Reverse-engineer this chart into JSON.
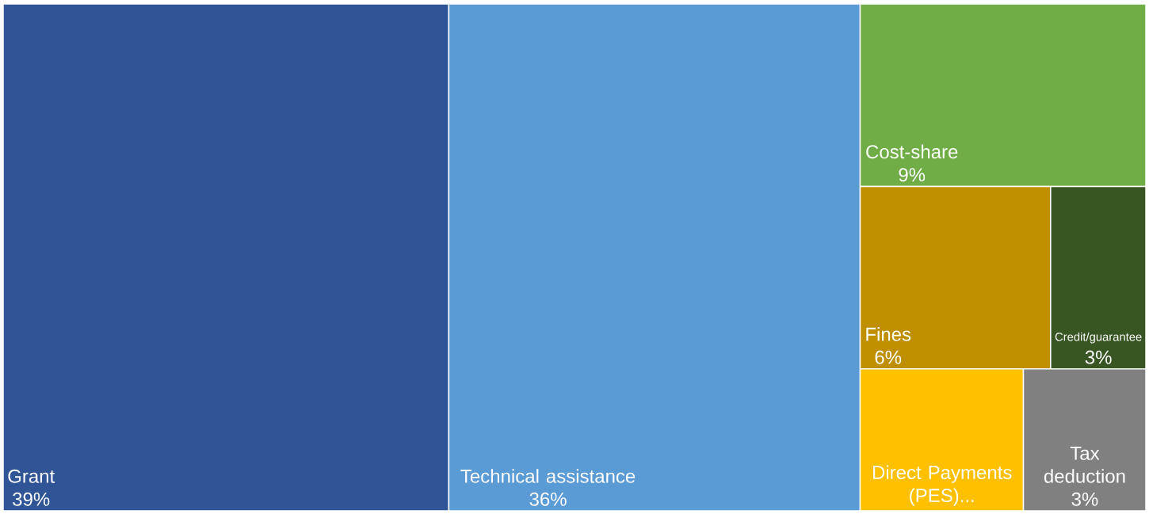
{
  "chart_data": {
    "type": "other",
    "categories": [
      "Grant",
      "Technical assistance",
      "Cost-share",
      "Fines",
      "Credit/guarantee",
      "Direct Payments (PES)...",
      "Tax deduction"
    ],
    "values": [
      39,
      36,
      9,
      6,
      3,
      null,
      3
    ],
    "value_labels": [
      "39%",
      "36%",
      "9%",
      "6%",
      "3%",
      null,
      "3%"
    ],
    "colors": [
      "#2f5597",
      "#5b9bd5",
      "#70ad47",
      "#bf8f00",
      "#375623",
      "#ffc000",
      "#808080"
    ]
  }
}
